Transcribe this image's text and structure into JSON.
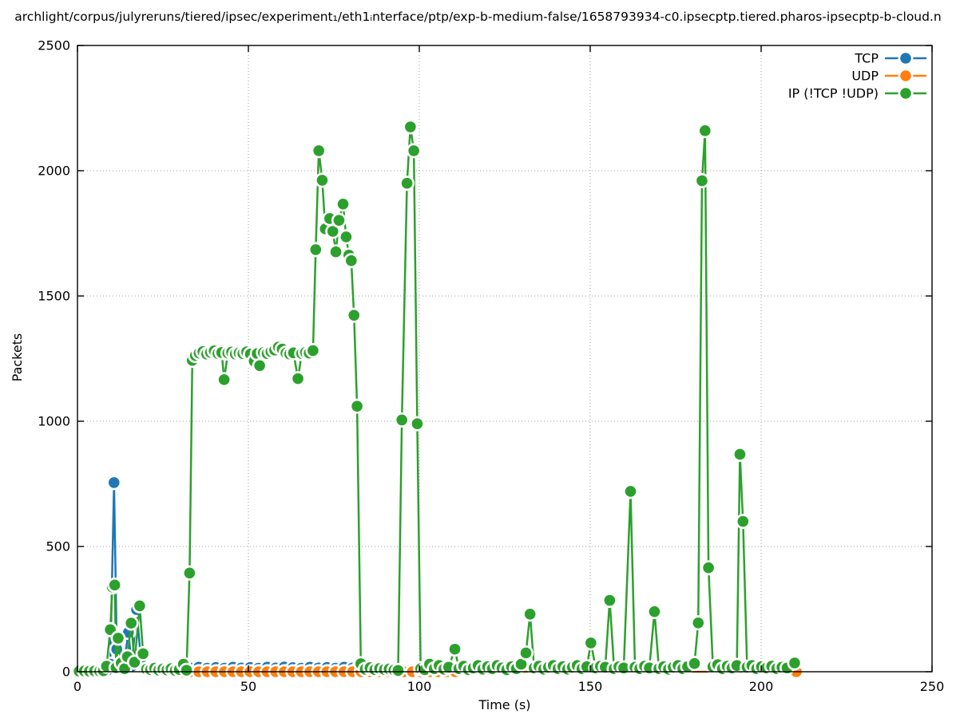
{
  "title": "archlight/corpus/julyreruns/tiered/ipsec/experiment₁/eth1ᵢnterface/ptp/exp-b-medium-false/1658793934-c0.ipsecptp.tiered.pharos-ipsecptp-b-cloud.n",
  "axes": {
    "x_label": "Time (s)",
    "y_label": "Packets",
    "x_ticks": [
      0,
      50,
      100,
      150,
      200,
      250
    ],
    "y_ticks": [
      0,
      500,
      1000,
      1500,
      2000,
      2500
    ]
  },
  "chart_data": {
    "type": "line",
    "title": "archlight/corpus/julyreruns/tiered/ipsec/experiment₁/eth1ᵢnterface/ptp/exp-b-medium-false/1658793934-c0.ipsecptp.tiered.pharos-ipsecptp-b-cloud.n",
    "xlabel": "Time (s)",
    "ylabel": "Packets",
    "xlim": [
      0,
      250
    ],
    "ylim": [
      0,
      2500
    ],
    "grid": true,
    "legend_position": "top-right",
    "marker": "filled-circle",
    "series": [
      {
        "name": "TCP",
        "color": "#1f77b4",
        "points": [
          [
            8.8,
            6
          ],
          [
            9.6,
            30
          ],
          [
            10.7,
            755
          ],
          [
            11.5,
            90
          ],
          [
            12.3,
            12
          ],
          [
            13.5,
            25
          ],
          [
            14.9,
            157
          ],
          [
            15.9,
            22
          ],
          [
            17.3,
            248
          ],
          [
            18.5,
            55
          ],
          [
            19.6,
            8
          ],
          [
            21,
            5
          ],
          [
            33,
            15
          ],
          [
            35.5,
            18
          ],
          [
            38,
            14
          ],
          [
            40.5,
            17
          ],
          [
            43,
            14
          ],
          [
            45.5,
            18
          ],
          [
            48,
            15
          ],
          [
            50.5,
            17
          ],
          [
            53,
            14
          ],
          [
            55.5,
            18
          ],
          [
            58,
            15
          ],
          [
            60.5,
            19
          ],
          [
            63,
            16
          ],
          [
            65.5,
            14
          ],
          [
            68,
            18
          ],
          [
            70.5,
            15
          ],
          [
            73,
            17
          ],
          [
            75.5,
            14
          ],
          [
            78,
            18
          ],
          [
            80.5,
            15
          ],
          [
            82,
            12
          ]
        ]
      },
      {
        "name": "UDP",
        "color": "#ff7f0e",
        "points": [
          [
            30.5,
            0
          ],
          [
            33,
            0
          ],
          [
            35.5,
            0
          ],
          [
            38,
            0
          ],
          [
            40.5,
            0
          ],
          [
            43,
            0
          ],
          [
            45.5,
            0
          ],
          [
            48,
            0
          ],
          [
            50.5,
            0
          ],
          [
            53,
            0
          ],
          [
            55.5,
            0
          ],
          [
            58,
            0
          ],
          [
            60.5,
            0
          ],
          [
            63,
            0
          ],
          [
            65.5,
            0
          ],
          [
            68,
            0
          ],
          [
            70.5,
            0
          ],
          [
            73,
            0
          ],
          [
            75.5,
            0
          ],
          [
            78,
            0
          ],
          [
            80.5,
            0
          ],
          [
            83,
            0
          ],
          [
            85.5,
            0
          ],
          [
            88,
            0
          ],
          [
            90.5,
            0
          ],
          [
            93,
            0
          ],
          [
            95.5,
            0
          ],
          [
            98,
            0
          ],
          [
            100.5,
            0
          ],
          [
            103,
            0
          ],
          [
            105.5,
            0
          ],
          [
            108,
            0
          ],
          [
            110.5,
            0
          ],
          [
            210.3,
            0
          ]
        ]
      },
      {
        "name": "IP (!TCP  !UDP)",
        "color": "#2ca02c",
        "points": [
          [
            0.5,
            2
          ],
          [
            2,
            3
          ],
          [
            3.5,
            2
          ],
          [
            5,
            3
          ],
          [
            6.5,
            2
          ],
          [
            7.6,
            4
          ],
          [
            8.5,
            22
          ],
          [
            9.6,
            168
          ],
          [
            10.2,
            338
          ],
          [
            10.9,
            346
          ],
          [
            11.3,
            16
          ],
          [
            11.9,
            134
          ],
          [
            12.8,
            35
          ],
          [
            13.8,
            12
          ],
          [
            14.6,
            60
          ],
          [
            15.7,
            194
          ],
          [
            16.7,
            38
          ],
          [
            18.2,
            263
          ],
          [
            19.2,
            72
          ],
          [
            20.2,
            10
          ],
          [
            21.4,
            8
          ],
          [
            22.6,
            14
          ],
          [
            23.8,
            6
          ],
          [
            25,
            11
          ],
          [
            26.2,
            7
          ],
          [
            27.4,
            12
          ],
          [
            28.6,
            5
          ],
          [
            29.8,
            9
          ],
          [
            31,
            30
          ],
          [
            31.9,
            6
          ],
          [
            32.8,
            394
          ],
          [
            33.6,
            1243
          ],
          [
            34.5,
            1262
          ],
          [
            35.6,
            1272
          ],
          [
            36.7,
            1278
          ],
          [
            37.8,
            1268
          ],
          [
            38.9,
            1275
          ],
          [
            40,
            1281
          ],
          [
            41.1,
            1270
          ],
          [
            42.2,
            1274
          ],
          [
            42.9,
            1166
          ],
          [
            44,
            1272
          ],
          [
            45.1,
            1276
          ],
          [
            46.2,
            1268
          ],
          [
            47.3,
            1273
          ],
          [
            48.4,
            1270
          ],
          [
            49.5,
            1277
          ],
          [
            50.6,
            1268
          ],
          [
            51.7,
            1240
          ],
          [
            52.6,
            1270
          ],
          [
            53.3,
            1222
          ],
          [
            54.4,
            1274
          ],
          [
            55.5,
            1270
          ],
          [
            56.6,
            1278
          ],
          [
            57.7,
            1284
          ],
          [
            58.8,
            1296
          ],
          [
            59.9,
            1288
          ],
          [
            61,
            1272
          ],
          [
            62.1,
            1268
          ],
          [
            63.2,
            1273
          ],
          [
            64.5,
            1170
          ],
          [
            65.6,
            1270
          ],
          [
            66.7,
            1275
          ],
          [
            67.8,
            1272
          ],
          [
            68.9,
            1282
          ],
          [
            69.7,
            1685
          ],
          [
            70.6,
            2080
          ],
          [
            71.6,
            1962
          ],
          [
            72.5,
            1768
          ],
          [
            73.8,
            1809
          ],
          [
            74.7,
            1758
          ],
          [
            75.6,
            1676
          ],
          [
            76.5,
            1802
          ],
          [
            77.7,
            1867
          ],
          [
            78.6,
            1736
          ],
          [
            79.4,
            1663
          ],
          [
            80.1,
            1641
          ],
          [
            80.9,
            1423
          ],
          [
            81.8,
            1060
          ],
          [
            82.9,
            32
          ],
          [
            84.2,
            10
          ],
          [
            85.6,
            16
          ],
          [
            87,
            8
          ],
          [
            88.4,
            13
          ],
          [
            89.8,
            9
          ],
          [
            91.2,
            11
          ],
          [
            92.6,
            7
          ],
          [
            93.8,
            5
          ],
          [
            94.9,
            1005
          ],
          [
            96.4,
            1950
          ],
          [
            97.4,
            2175
          ],
          [
            98.4,
            2080
          ],
          [
            99.4,
            990
          ],
          [
            100.4,
            12
          ],
          [
            101.6,
            8
          ],
          [
            103,
            30
          ],
          [
            104.4,
            12
          ],
          [
            105.8,
            25
          ],
          [
            107.2,
            10
          ],
          [
            108.6,
            18
          ],
          [
            110.4,
            90
          ],
          [
            111.6,
            12
          ],
          [
            113,
            22
          ],
          [
            114.4,
            8
          ],
          [
            115.8,
            15
          ],
          [
            117.2,
            25
          ],
          [
            118.6,
            10
          ],
          [
            120,
            20
          ],
          [
            121.4,
            12
          ],
          [
            122.8,
            25
          ],
          [
            124.2,
            15
          ],
          [
            125.6,
            8
          ],
          [
            127,
            20
          ],
          [
            128.4,
            12
          ],
          [
            129.8,
            30
          ],
          [
            131.2,
            75
          ],
          [
            132.4,
            230
          ],
          [
            133.6,
            15
          ],
          [
            135,
            22
          ],
          [
            136.4,
            10
          ],
          [
            137.8,
            18
          ],
          [
            139.2,
            25
          ],
          [
            140.6,
            12
          ],
          [
            142,
            20
          ],
          [
            143.4,
            10
          ],
          [
            144.8,
            18
          ],
          [
            146.2,
            25
          ],
          [
            147.6,
            12
          ],
          [
            149,
            20
          ],
          [
            150.2,
            115
          ],
          [
            151.6,
            15
          ],
          [
            153,
            22
          ],
          [
            154.4,
            18
          ],
          [
            155.7,
            285
          ],
          [
            157,
            12
          ],
          [
            158.4,
            20
          ],
          [
            159.8,
            15
          ],
          [
            161.8,
            720
          ],
          [
            163.1,
            18
          ],
          [
            164.5,
            12
          ],
          [
            165.9,
            22
          ],
          [
            167.3,
            15
          ],
          [
            168.8,
            240
          ],
          [
            170.1,
            12
          ],
          [
            171.5,
            20
          ],
          [
            172.9,
            10
          ],
          [
            174.3,
            18
          ],
          [
            175.7,
            25
          ],
          [
            177.1,
            12
          ],
          [
            178.5,
            20
          ],
          [
            180.5,
            33
          ],
          [
            181.6,
            195
          ],
          [
            182.7,
            1960
          ],
          [
            183.6,
            2160
          ],
          [
            184.6,
            415
          ],
          [
            185.9,
            20
          ],
          [
            187.3,
            28
          ],
          [
            188.7,
            12
          ],
          [
            190.1,
            22
          ],
          [
            191.5,
            15
          ],
          [
            192.9,
            25
          ],
          [
            193.8,
            868
          ],
          [
            194.7,
            600
          ],
          [
            195.9,
            18
          ],
          [
            197.3,
            25
          ],
          [
            198.7,
            12
          ],
          [
            200.1,
            20
          ],
          [
            201.6,
            15
          ],
          [
            203.1,
            22
          ],
          [
            204.6,
            12
          ],
          [
            206.1,
            18
          ],
          [
            207.6,
            15
          ],
          [
            209.8,
            35
          ]
        ]
      }
    ]
  }
}
